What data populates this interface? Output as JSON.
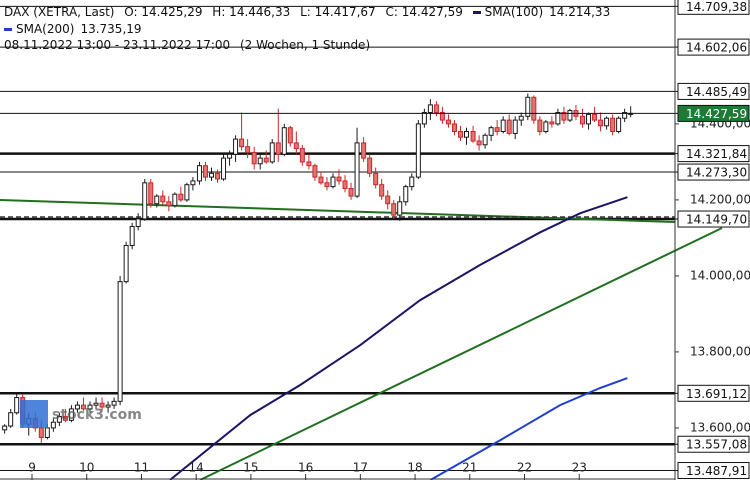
{
  "chart_data": {
    "type": "candlestick",
    "header": {
      "instrument": "DAX (XETRA, Last)",
      "open": "O: 14.425,29",
      "high": "H: 14.446,33",
      "low": "L: 14.417,67",
      "close": "C: 14.427,59",
      "period": "08.11.2022 13:00 - 23.11.2022 17:00",
      "interval": "(2 Wochen, 1 Stunde)"
    },
    "watermark": "stock3.com",
    "up_color": "#1a1a1a",
    "down_color": "#c62828",
    "xlim": [
      -0.585,
      11.75
    ],
    "ylim": [
      13463,
      14726
    ],
    "xticks": [
      {
        "value": 0,
        "label": "9"
      },
      {
        "value": 1,
        "label": "10"
      },
      {
        "value": 2,
        "label": "11"
      },
      {
        "value": 3,
        "label": "14"
      },
      {
        "value": 4,
        "label": "15"
      },
      {
        "value": 5,
        "label": "16"
      },
      {
        "value": 6,
        "label": "17"
      },
      {
        "value": 7,
        "label": "18"
      },
      {
        "value": 8,
        "label": "21"
      },
      {
        "value": 9,
        "label": "22"
      },
      {
        "value": 10,
        "label": "23"
      }
    ],
    "yticks": [
      {
        "value": 13600,
        "label": "13.600,00"
      },
      {
        "value": 13800,
        "label": "13.800,00"
      },
      {
        "value": 14000,
        "label": "14.000,00"
      },
      {
        "value": 14200,
        "label": "14.200,00"
      },
      {
        "value": 14400,
        "label": "14.400,00"
      }
    ],
    "levels": [
      {
        "value": 14709.38,
        "label": "14.709,38",
        "thick": false
      },
      {
        "value": 14602.06,
        "label": "14.602,06",
        "thick": false
      },
      {
        "value": 14485.49,
        "label": "14.485,49",
        "thick": false
      },
      {
        "value": 14321.84,
        "label": "14.321,84",
        "thick": true
      },
      {
        "value": 14273.3,
        "label": "14.273,30",
        "thick": false
      },
      {
        "value": 14149.7,
        "label": "14.149,70",
        "thick": true
      },
      {
        "value": 13691.12,
        "label": "13.691,12",
        "thick": true
      },
      {
        "value": 13557.08,
        "label": "13.557,08",
        "thick": true
      },
      {
        "value": 13487.91,
        "label": "13.487,91",
        "thick": false
      }
    ],
    "last_price": {
      "value": 14427.59,
      "label": "14.427,59",
      "color": "#1e7a34"
    },
    "x": [
      -0.5,
      -0.39,
      -0.28,
      -0.17,
      -0.06,
      0.06,
      0.17,
      0.28,
      0.39,
      0.5,
      0.61,
      0.72,
      0.83,
      0.94,
      1.06,
      1.17,
      1.28,
      1.39,
      1.5,
      1.61,
      1.72,
      1.83,
      1.94,
      2.06,
      2.17,
      2.28,
      2.39,
      2.5,
      2.61,
      2.72,
      2.83,
      2.94,
      3.06,
      3.17,
      3.28,
      3.39,
      3.5,
      3.61,
      3.72,
      3.83,
      3.94,
      4.06,
      4.17,
      4.28,
      4.39,
      4.5,
      4.61,
      4.72,
      4.83,
      4.94,
      5.06,
      5.17,
      5.28,
      5.39,
      5.5,
      5.61,
      5.72,
      5.83,
      5.94,
      6.06,
      6.17,
      6.28,
      6.39,
      6.5,
      6.61,
      6.72,
      6.83,
      6.94,
      7.06,
      7.17,
      7.28,
      7.39,
      7.5,
      7.61,
      7.72,
      7.83,
      7.94,
      8.06,
      8.17,
      8.28,
      8.39,
      8.5,
      8.61,
      8.72,
      8.83,
      8.94,
      9.06,
      9.17,
      9.28,
      9.39,
      9.5,
      9.61,
      9.72,
      9.83,
      9.94,
      10.06,
      10.17,
      10.28,
      10.39,
      10.5,
      10.61,
      10.72,
      10.83,
      10.94
    ],
    "open": [
      13595,
      13605,
      13640,
      13680,
      13610,
      13625,
      13600,
      13575,
      13600,
      13615,
      13630,
      13620,
      13650,
      13660,
      13650,
      13660,
      13665,
      13655,
      13660,
      13670,
      13985,
      14080,
      14130,
      14150,
      14245,
      14190,
      14210,
      14195,
      14185,
      14215,
      14200,
      14240,
      14250,
      14290,
      14260,
      14270,
      14255,
      14310,
      14320,
      14360,
      14340,
      14325,
      14295,
      14310,
      14300,
      14350,
      14320,
      14390,
      14350,
      14335,
      14300,
      14290,
      14260,
      14245,
      14235,
      14260,
      14250,
      14230,
      14210,
      14350,
      14310,
      14270,
      14240,
      14210,
      14190,
      14160,
      14195,
      14235,
      14260,
      14400,
      14430,
      14450,
      14430,
      14410,
      14400,
      14380,
      14365,
      14380,
      14355,
      14345,
      14370,
      14390,
      14380,
      14410,
      14375,
      14410,
      14420,
      14470,
      14410,
      14380,
      14405,
      14400,
      14430,
      14410,
      14435,
      14420,
      14400,
      14425,
      14410,
      14395,
      14415,
      14380,
      14415,
      14425.29
    ],
    "high": [
      13610,
      13650,
      13690,
      13690,
      13640,
      13640,
      13620,
      13610,
      13625,
      13640,
      13650,
      13660,
      13670,
      13680,
      13670,
      13680,
      13680,
      13670,
      13680,
      14000,
      14090,
      14140,
      14165,
      14255,
      14255,
      14215,
      14225,
      14210,
      14220,
      14235,
      14245,
      14260,
      14300,
      14300,
      14285,
      14280,
      14320,
      14330,
      14370,
      14430,
      14360,
      14340,
      14320,
      14330,
      14360,
      14440,
      14400,
      14395,
      14380,
      14345,
      14320,
      14295,
      14275,
      14260,
      14270,
      14280,
      14265,
      14245,
      14390,
      14365,
      14320,
      14285,
      14255,
      14225,
      14200,
      14210,
      14240,
      14270,
      14410,
      14440,
      14465,
      14460,
      14445,
      14425,
      14410,
      14395,
      14390,
      14395,
      14370,
      14375,
      14395,
      14410,
      14420,
      14425,
      14420,
      14430,
      14480,
      14475,
      14420,
      14410,
      14420,
      14440,
      14445,
      14440,
      14450,
      14440,
      14430,
      14445,
      14430,
      14420,
      14425,
      14420,
      14440,
      14446.33
    ],
    "low": [
      13585,
      13600,
      13635,
      13600,
      13580,
      13590,
      13560,
      13570,
      13590,
      13605,
      13615,
      13615,
      13640,
      13645,
      13640,
      13650,
      13645,
      13640,
      13650,
      13660,
      13980,
      14070,
      14120,
      14145,
      14180,
      14180,
      14185,
      14170,
      14180,
      14195,
      14195,
      14225,
      14240,
      14250,
      14250,
      14245,
      14250,
      14290,
      14300,
      14330,
      14310,
      14280,
      14280,
      14295,
      14295,
      14300,
      14315,
      14340,
      14320,
      14290,
      14280,
      14250,
      14240,
      14225,
      14230,
      14240,
      14220,
      14200,
      14205,
      14300,
      14260,
      14230,
      14200,
      14175,
      14150,
      14145,
      14185,
      14225,
      14255,
      14390,
      14410,
      14420,
      14400,
      14390,
      14370,
      14355,
      14345,
      14350,
      14330,
      14335,
      14355,
      14370,
      14375,
      14370,
      14360,
      14395,
      14410,
      14400,
      14370,
      14375,
      14390,
      14395,
      14400,
      14405,
      14410,
      14390,
      14385,
      14405,
      14380,
      14385,
      14370,
      14375,
      14405,
      14417.67
    ],
    "close": [
      13605,
      13640,
      13680,
      13610,
      13625,
      13600,
      13575,
      13600,
      13615,
      13630,
      13620,
      13650,
      13660,
      13650,
      13660,
      13665,
      13655,
      13660,
      13670,
      13985,
      14080,
      14130,
      14150,
      14245,
      14190,
      14210,
      14195,
      14185,
      14215,
      14200,
      14240,
      14250,
      14290,
      14260,
      14270,
      14255,
      14310,
      14320,
      14360,
      14340,
      14325,
      14295,
      14310,
      14300,
      14350,
      14320,
      14390,
      14350,
      14335,
      14300,
      14290,
      14260,
      14245,
      14235,
      14260,
      14250,
      14230,
      14210,
      14350,
      14310,
      14270,
      14240,
      14210,
      14190,
      14160,
      14195,
      14235,
      14260,
      14400,
      14430,
      14450,
      14430,
      14410,
      14400,
      14380,
      14365,
      14380,
      14355,
      14345,
      14370,
      14390,
      14380,
      14410,
      14375,
      14410,
      14420,
      14470,
      14410,
      14380,
      14405,
      14400,
      14430,
      14410,
      14435,
      14420,
      14400,
      14425,
      14410,
      14395,
      14415,
      14380,
      14415,
      14430,
      14427.59
    ],
    "series": [
      {
        "name": "SMA(100)",
        "last_label": "14.214,33",
        "color": "#1c1466",
        "x": [
          2.52,
          3.99,
          4.9,
          6.0,
          7.09,
          8.19,
          9.29,
          10.02,
          10.88
        ],
        "values": [
          13463,
          13634,
          13713,
          13818,
          13936,
          14029,
          14115,
          14165,
          14207
        ]
      },
      {
        "name": "SMA(200)",
        "last_label": "13.735,19",
        "color": "#1e3fd0",
        "x": [
          7.28,
          8.56,
          9.65,
          10.38,
          10.88
        ],
        "values": [
          13463,
          13568,
          13660,
          13705,
          13731
        ]
      }
    ]
  }
}
